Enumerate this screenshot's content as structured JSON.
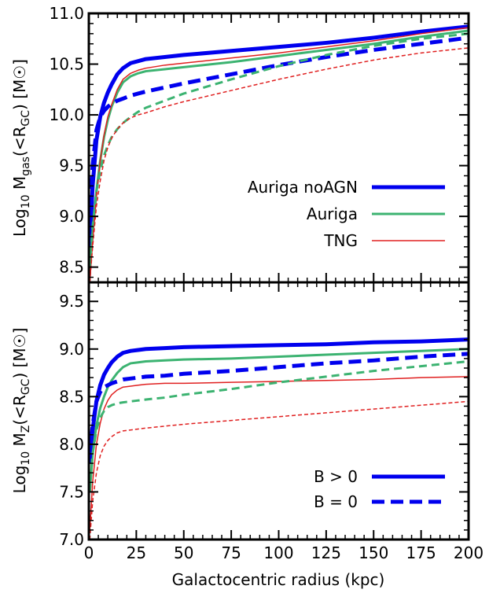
{
  "chart_data": [
    {
      "type": "line",
      "panel": "top",
      "ylabel": "Log$_{10}$ M$_{gas}$(<R$_{GC}$) [M$_{\\odot}$]",
      "ylabel_parts": {
        "pre": "Log",
        "sub1": "10",
        "mid": " M",
        "sub2": "gas",
        "post1": "(<R",
        "sub3": "GC",
        "post2": ") [M",
        "sun": "☉",
        "close": "]"
      },
      "xlim": [
        0,
        200
      ],
      "ylim": [
        8.35,
        11.0
      ],
      "yticks": [
        "8.5",
        "9.0",
        "9.5",
        "10.0",
        "10.5",
        "11.0"
      ],
      "ytick_values": [
        8.5,
        9.0,
        9.5,
        10.0,
        10.5,
        11.0
      ],
      "legend_placement": "lower-right",
      "legend": [
        {
          "label": "Auriga noAGN",
          "color": "#0000ee",
          "width": 5,
          "dash": ""
        },
        {
          "label": "Auriga",
          "color": "#3cb371",
          "width": 3,
          "dash": ""
        },
        {
          "label": "TNG",
          "color": "#e02020",
          "width": 1.5,
          "dash": ""
        }
      ],
      "series": [
        {
          "name": "Auriga noAGN",
          "style": "solid",
          "color": "#0000ee",
          "width": 5,
          "x": [
            0.5,
            2,
            4,
            6,
            8,
            10,
            12,
            15,
            18,
            22,
            26,
            30,
            40,
            50,
            75,
            100,
            125,
            150,
            175,
            200
          ],
          "y": [
            8.7,
            9.3,
            9.75,
            9.98,
            10.12,
            10.22,
            10.3,
            10.4,
            10.46,
            10.51,
            10.53,
            10.55,
            10.57,
            10.59,
            10.63,
            10.67,
            10.71,
            10.76,
            10.82,
            10.87
          ]
        },
        {
          "name": "Auriga",
          "style": "solid",
          "color": "#3cb371",
          "width": 3,
          "x": [
            0.5,
            2,
            4,
            6,
            8,
            10,
            12,
            15,
            18,
            22,
            26,
            30,
            40,
            50,
            75,
            100,
            125,
            150,
            175,
            200
          ],
          "y": [
            8.45,
            8.85,
            9.25,
            9.55,
            9.78,
            9.95,
            10.08,
            10.22,
            10.32,
            10.38,
            10.41,
            10.43,
            10.45,
            10.47,
            10.52,
            10.58,
            10.64,
            10.7,
            10.77,
            10.83
          ]
        },
        {
          "name": "TNG",
          "style": "solid",
          "color": "#e02020",
          "width": 1.5,
          "x": [
            0.5,
            2,
            4,
            6,
            8,
            10,
            12,
            15,
            18,
            22,
            26,
            30,
            40,
            50,
            75,
            100,
            125,
            150,
            175,
            200
          ],
          "y": [
            8.35,
            8.75,
            9.2,
            9.55,
            9.8,
            9.98,
            10.1,
            10.25,
            10.35,
            10.41,
            10.44,
            10.46,
            10.49,
            10.51,
            10.56,
            10.61,
            10.67,
            10.73,
            10.8,
            10.86
          ]
        },
        {
          "name": "Auriga noAGN B = 0",
          "style": "dashed",
          "color": "#0000ee",
          "width": 5,
          "x": [
            0.5,
            2,
            4,
            6,
            8,
            10,
            12,
            15,
            18,
            22,
            26,
            30,
            40,
            50,
            75,
            100,
            125,
            150,
            175,
            200
          ],
          "y": [
            8.9,
            9.5,
            9.85,
            9.98,
            10.04,
            10.08,
            10.11,
            10.14,
            10.16,
            10.19,
            10.21,
            10.23,
            10.27,
            10.31,
            10.4,
            10.49,
            10.57,
            10.64,
            10.7,
            10.76
          ]
        },
        {
          "name": "Auriga B = 0",
          "style": "dashed",
          "color": "#3cb371",
          "width": 3,
          "x": [
            0.5,
            2,
            4,
            6,
            8,
            10,
            12,
            15,
            18,
            22,
            26,
            30,
            40,
            50,
            75,
            100,
            125,
            150,
            175,
            200
          ],
          "y": [
            8.5,
            8.9,
            9.25,
            9.45,
            9.6,
            9.7,
            9.78,
            9.86,
            9.92,
            9.98,
            10.03,
            10.07,
            10.14,
            10.21,
            10.35,
            10.48,
            10.59,
            10.68,
            10.75,
            10.8
          ]
        },
        {
          "name": "TNG B = 0",
          "style": "dashed",
          "color": "#e02020",
          "width": 1.5,
          "x": [
            0.5,
            2,
            4,
            6,
            8,
            10,
            12,
            15,
            18,
            22,
            26,
            30,
            40,
            50,
            75,
            100,
            125,
            150,
            175,
            200
          ],
          "y": [
            8.35,
            8.7,
            9.1,
            9.35,
            9.55,
            9.68,
            9.77,
            9.86,
            9.92,
            9.97,
            10.0,
            10.02,
            10.08,
            10.13,
            10.24,
            10.35,
            10.45,
            10.54,
            10.61,
            10.66
          ]
        }
      ]
    },
    {
      "type": "line",
      "panel": "bottom",
      "xlabel": "Galactocentric radius (kpc)",
      "ylabel_parts": {
        "pre": "Log",
        "sub1": "10",
        "mid": " M",
        "sub2": "Z",
        "post1": "(<R",
        "sub3": "GC",
        "post2": ") [M",
        "sun": "☉",
        "close": "]"
      },
      "xlim": [
        0,
        200
      ],
      "ylim": [
        7.0,
        9.7
      ],
      "xticks": [
        "0",
        "25",
        "50",
        "75",
        "100",
        "125",
        "150",
        "175",
        "200"
      ],
      "xtick_values": [
        0,
        25,
        50,
        75,
        100,
        125,
        150,
        175,
        200
      ],
      "yticks": [
        "7.0",
        "7.5",
        "8.0",
        "8.5",
        "9.0",
        "9.5"
      ],
      "ytick_values": [
        7.0,
        7.5,
        8.0,
        8.5,
        9.0,
        9.5
      ],
      "legend_placement": "lower-right",
      "legend": [
        {
          "label": "B > 0",
          "color": "#0000ee",
          "width": 5,
          "dash": ""
        },
        {
          "label": "B = 0",
          "color": "#0000ee",
          "width": 5,
          "dash": "16,8"
        }
      ],
      "series": [
        {
          "name": "Auriga noAGN B > 0",
          "style": "solid",
          "color": "#0000ee",
          "width": 5,
          "x": [
            0.5,
            2,
            4,
            6,
            8,
            10,
            12,
            15,
            18,
            22,
            26,
            30,
            40,
            50,
            75,
            100,
            125,
            150,
            175,
            200
          ],
          "y": [
            7.8,
            8.15,
            8.45,
            8.62,
            8.73,
            8.8,
            8.86,
            8.92,
            8.96,
            8.98,
            8.99,
            9.0,
            9.01,
            9.02,
            9.03,
            9.04,
            9.05,
            9.07,
            9.08,
            9.1
          ]
        },
        {
          "name": "Auriga B > 0",
          "style": "solid",
          "color": "#3cb371",
          "width": 3,
          "x": [
            0.5,
            2,
            4,
            6,
            8,
            10,
            12,
            15,
            18,
            22,
            26,
            30,
            40,
            50,
            75,
            100,
            125,
            150,
            175,
            200
          ],
          "y": [
            7.5,
            7.9,
            8.2,
            8.38,
            8.5,
            8.6,
            8.67,
            8.75,
            8.81,
            8.85,
            8.86,
            8.87,
            8.88,
            8.89,
            8.9,
            8.92,
            8.94,
            8.96,
            8.98,
            9.0
          ]
        },
        {
          "name": "TNG B > 0",
          "style": "solid",
          "color": "#e02020",
          "width": 1.5,
          "x": [
            0.5,
            2,
            4,
            6,
            8,
            10,
            12,
            15,
            18,
            22,
            26,
            30,
            40,
            50,
            75,
            100,
            125,
            150,
            175,
            200
          ],
          "y": [
            7.1,
            7.6,
            8.0,
            8.22,
            8.37,
            8.46,
            8.52,
            8.57,
            8.6,
            8.61,
            8.62,
            8.63,
            8.64,
            8.64,
            8.65,
            8.66,
            8.67,
            8.68,
            8.7,
            8.71
          ]
        },
        {
          "name": "Auriga noAGN B = 0",
          "style": "dashed",
          "color": "#0000ee",
          "width": 5,
          "x": [
            0.5,
            2,
            4,
            6,
            8,
            10,
            12,
            15,
            18,
            22,
            26,
            30,
            40,
            50,
            75,
            100,
            125,
            150,
            175,
            200
          ],
          "y": [
            7.85,
            8.2,
            8.45,
            8.55,
            8.6,
            8.62,
            8.64,
            8.66,
            8.68,
            8.69,
            8.7,
            8.71,
            8.72,
            8.74,
            8.77,
            8.81,
            8.85,
            8.88,
            8.92,
            8.95
          ]
        },
        {
          "name": "Auriga B = 0",
          "style": "dashed",
          "color": "#3cb371",
          "width": 3,
          "x": [
            0.5,
            2,
            4,
            6,
            8,
            10,
            12,
            15,
            18,
            22,
            26,
            30,
            40,
            50,
            75,
            100,
            125,
            150,
            175,
            200
          ],
          "y": [
            7.5,
            7.9,
            8.15,
            8.28,
            8.35,
            8.39,
            8.41,
            8.43,
            8.44,
            8.45,
            8.46,
            8.47,
            8.49,
            8.52,
            8.58,
            8.65,
            8.71,
            8.77,
            8.82,
            8.87
          ]
        },
        {
          "name": "TNG B = 0",
          "style": "dashed",
          "color": "#e02020",
          "width": 1.5,
          "x": [
            0.5,
            2,
            4,
            6,
            8,
            10,
            12,
            15,
            18,
            22,
            26,
            30,
            40,
            50,
            75,
            100,
            125,
            150,
            175,
            200
          ],
          "y": [
            7.0,
            7.4,
            7.7,
            7.88,
            7.98,
            8.04,
            8.08,
            8.12,
            8.14,
            8.15,
            8.16,
            8.17,
            8.19,
            8.21,
            8.25,
            8.29,
            8.33,
            8.37,
            8.41,
            8.45
          ]
        }
      ]
    }
  ]
}
